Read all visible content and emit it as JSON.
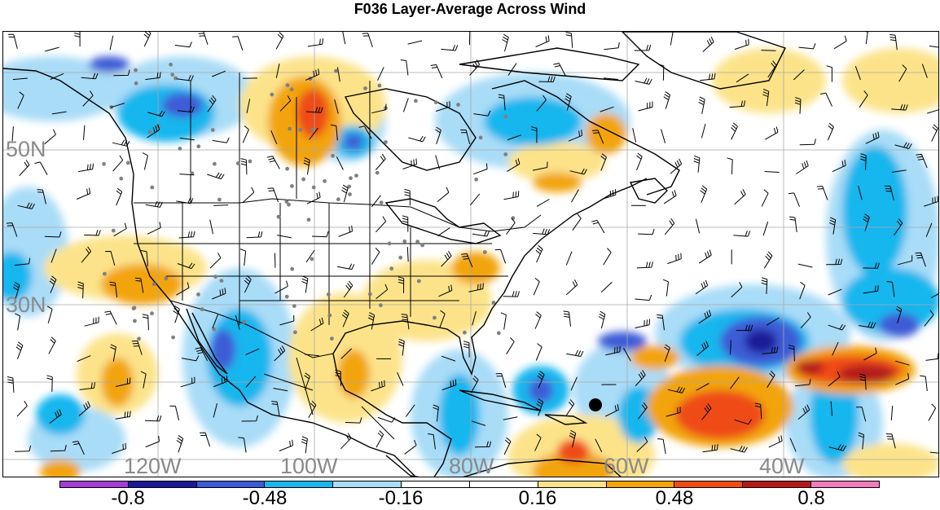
{
  "title": "F036 Layer-Average Across Wind",
  "lat_labels": [
    "50N",
    "30N"
  ],
  "lon_labels": [
    "120W",
    "100W",
    "80W",
    "60W",
    "40W"
  ],
  "colorbar": {
    "colors": [
      "#a33fd1",
      "#1a1a99",
      "#3c5bd6",
      "#19b6ee",
      "#a9dcf7",
      "#ffffff",
      "#ffffff",
      "#fce38a",
      "#f2a40a",
      "#ef4c14",
      "#b41a1a",
      "#f07bbd"
    ],
    "tick_labels": [
      "-0.8",
      "-0.48",
      "-0.16",
      "0.16",
      "0.48",
      "0.8"
    ]
  },
  "legend_colors": {
    "deep_blue": "#2c3fb8",
    "blue": "#3c78d8",
    "sky": "#19b6ee",
    "light_blue": "#a9dcf7",
    "yellow": "#fce38a",
    "orange": "#f2a40a",
    "red_orange": "#ef4c14",
    "dark_red": "#b41a1a",
    "station_dot": "#808080"
  }
}
